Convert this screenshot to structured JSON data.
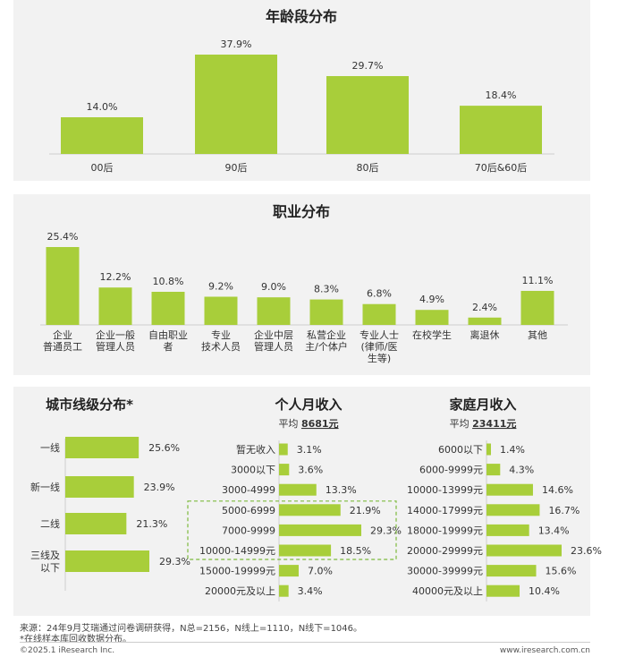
{
  "colors": {
    "bar": "#A8CE3A",
    "dashed": "#7DBA3D",
    "panel": "#F2F2F2"
  },
  "chart_data": [
    {
      "type": "bar",
      "title": "年龄段分布",
      "categories": [
        "00后",
        "90后",
        "80后",
        "70后&60后"
      ],
      "values": [
        14.0,
        37.9,
        29.7,
        18.4
      ],
      "value_labels": [
        "14.0%",
        "37.9%",
        "29.7%",
        "18.4%"
      ]
    },
    {
      "type": "bar",
      "title": "职业分布",
      "categories": [
        "企业\n普通员工",
        "企业一般\n管理人员",
        "自由职业\n者",
        "专业\n技术人员",
        "企业中层\n管理人员",
        "私营企业\n主/个体户",
        "专业人士\n(律师/医\n生等)",
        "在校学生",
        "离退休",
        "其他"
      ],
      "values": [
        25.4,
        12.2,
        10.8,
        9.2,
        9.0,
        8.3,
        6.8,
        4.9,
        2.4,
        11.1
      ],
      "value_labels": [
        "25.4%",
        "12.2%",
        "10.8%",
        "9.2%",
        "9.0%",
        "8.3%",
        "6.8%",
        "4.9%",
        "2.4%",
        "11.1%"
      ]
    },
    {
      "type": "bar",
      "orientation": "horizontal",
      "title": "城市线级分布*",
      "categories": [
        "一线",
        "新一线",
        "二线",
        "三线及\n以下"
      ],
      "values": [
        25.6,
        23.9,
        21.3,
        29.3
      ],
      "value_labels": [
        "25.6%",
        "23.9%",
        "21.3%",
        "29.3%"
      ]
    },
    {
      "type": "bar",
      "orientation": "horizontal",
      "title": "个人月收入",
      "subtitle_prefix": "平均 ",
      "subtitle_value": "8681元",
      "categories": [
        "暂无收入",
        "3000以下",
        "3000-4999",
        "5000-6999",
        "7000-9999",
        "10000-14999元",
        "15000-19999元",
        "20000元及以上"
      ],
      "values": [
        3.1,
        3.6,
        13.3,
        21.9,
        29.3,
        18.5,
        7.0,
        3.4
      ],
      "value_labels": [
        "3.1%",
        "3.6%",
        "13.3%",
        "21.9%",
        "29.3%",
        "18.5%",
        "7.0%",
        "3.4%"
      ],
      "highlight": [
        3,
        5
      ]
    },
    {
      "type": "bar",
      "orientation": "horizontal",
      "title": "家庭月收入",
      "subtitle_prefix": "平均 ",
      "subtitle_value": "23411元",
      "categories": [
        "6000以下",
        "6000-9999元",
        "10000-13999元",
        "14000-17999元",
        "18000-19999元",
        "20000-29999元",
        "30000-39999元",
        "40000元及以上"
      ],
      "values": [
        1.4,
        4.3,
        14.6,
        16.7,
        13.4,
        23.6,
        15.6,
        10.4
      ],
      "value_labels": [
        "1.4%",
        "4.3%",
        "14.6%",
        "16.7%",
        "13.4%",
        "23.6%",
        "15.6%",
        "10.4%"
      ]
    }
  ],
  "footer": {
    "source": "来源：24年9月艾瑞通过问卷调研获得，N总=2156，N线上=1110，N线下=1046。",
    "note": "*在线样本库回收数据分布。",
    "copyright": "©2025.1 iResearch Inc.",
    "website": "www.iresearch.com.cn"
  }
}
